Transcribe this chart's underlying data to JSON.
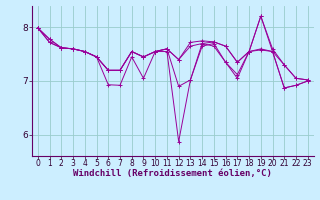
{
  "background_color": "#cceeff",
  "line_color": "#990099",
  "grid_color": "#99cccc",
  "xlabel": "Windchill (Refroidissement éolien,°C)",
  "xlabel_fontsize": 6.5,
  "tick_fontsize": 5.5,
  "series": [
    [
      7.99,
      7.72,
      7.62,
      7.6,
      7.55,
      7.45,
      6.93,
      6.92,
      7.45,
      7.05,
      7.55,
      7.55,
      5.87,
      7.02,
      7.7,
      7.65,
      7.35,
      7.05,
      7.55,
      8.21,
      7.55,
      6.87,
      6.92,
      7.0
    ],
    [
      7.99,
      7.78,
      7.62,
      7.6,
      7.55,
      7.45,
      7.2,
      7.2,
      7.55,
      7.45,
      7.55,
      7.6,
      7.4,
      7.65,
      7.7,
      7.73,
      7.65,
      7.35,
      7.55,
      7.6,
      7.55,
      7.3,
      7.05,
      7.02
    ],
    [
      7.99,
      7.78,
      7.62,
      7.6,
      7.55,
      7.45,
      7.2,
      7.2,
      7.55,
      7.45,
      7.55,
      7.6,
      7.4,
      7.72,
      7.75,
      7.73,
      7.65,
      7.35,
      7.55,
      8.21,
      7.6,
      7.3,
      7.05,
      7.02
    ],
    [
      7.99,
      7.72,
      7.62,
      7.6,
      7.55,
      7.45,
      7.2,
      7.2,
      7.55,
      7.45,
      7.55,
      7.6,
      6.9,
      7.02,
      7.65,
      7.7,
      7.35,
      7.12,
      7.55,
      7.58,
      7.55,
      6.87,
      6.92,
      7.0
    ]
  ],
  "xlim": [
    -0.5,
    23.5
  ],
  "ylim": [
    5.6,
    8.4
  ],
  "yticks": [
    6,
    7,
    8
  ],
  "xticks": [
    0,
    1,
    2,
    3,
    4,
    5,
    6,
    7,
    8,
    9,
    10,
    11,
    12,
    13,
    14,
    15,
    16,
    17,
    18,
    19,
    20,
    21,
    22,
    23
  ],
  "figsize": [
    3.2,
    2.0
  ],
  "dpi": 100
}
